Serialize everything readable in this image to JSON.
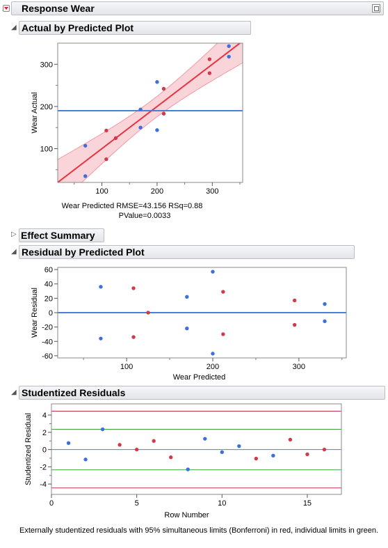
{
  "report": {
    "title": "Response Wear"
  },
  "sections": {
    "actual_by_predicted": "Actual by Predicted Plot",
    "effect_summary": "Effect Summary",
    "residual_by_predicted": "Residual by Predicted Plot",
    "studentized": "Studentized Residuals"
  },
  "colors": {
    "red_point": "#d23a4a",
    "blue_point": "#3d6fe0",
    "fit_line": "#e8323f",
    "mean_line": "#4a7fd8",
    "band": "#f7c6cc",
    "limit_red": "#c8304a",
    "limit_green": "#3aa23a"
  },
  "chart_data": [
    {
      "type": "scatter",
      "name": "actual_by_predicted",
      "xlabel": "Wear Predicted",
      "ylabel": "Wear Actual",
      "xlim": [
        20,
        355
      ],
      "ylim": [
        20,
        350
      ],
      "xticks": [
        "100",
        "200",
        "300"
      ],
      "yticks": [
        "100",
        "200",
        "300"
      ],
      "stats_line1": "RMSE=43.156 RSq=0.88",
      "stats_line2": "PValue=0.0033",
      "mean_y": 190,
      "points": [
        {
          "x": 70,
          "y": 107,
          "group": "blue"
        },
        {
          "x": 70,
          "y": 35,
          "group": "blue"
        },
        {
          "x": 108,
          "y": 143,
          "group": "red"
        },
        {
          "x": 108,
          "y": 75,
          "group": "red"
        },
        {
          "x": 125,
          "y": 125,
          "group": "red"
        },
        {
          "x": 170,
          "y": 193,
          "group": "blue"
        },
        {
          "x": 170,
          "y": 150,
          "group": "blue"
        },
        {
          "x": 200,
          "y": 258,
          "group": "blue"
        },
        {
          "x": 200,
          "y": 144,
          "group": "blue"
        },
        {
          "x": 212,
          "y": 242,
          "group": "red"
        },
        {
          "x": 212,
          "y": 183,
          "group": "red"
        },
        {
          "x": 295,
          "y": 312,
          "group": "red"
        },
        {
          "x": 295,
          "y": 279,
          "group": "red"
        },
        {
          "x": 330,
          "y": 343,
          "group": "blue"
        },
        {
          "x": 330,
          "y": 318,
          "group": "blue"
        }
      ]
    },
    {
      "type": "scatter",
      "name": "residual_by_predicted",
      "xlabel": "Wear Predicted",
      "ylabel": "Wear Residual",
      "xlim": [
        20,
        355
      ],
      "ylim": [
        -63,
        63
      ],
      "xticks": [
        "100",
        "200",
        "300"
      ],
      "yticks": [
        "60",
        "40",
        "20",
        "0",
        "-20",
        "-40",
        "-60"
      ],
      "zero_line": 0,
      "points": [
        {
          "x": 70,
          "y": 36,
          "group": "blue"
        },
        {
          "x": 70,
          "y": -36,
          "group": "blue"
        },
        {
          "x": 108,
          "y": 34,
          "group": "red"
        },
        {
          "x": 108,
          "y": -34,
          "group": "red"
        },
        {
          "x": 125,
          "y": 0,
          "group": "red"
        },
        {
          "x": 170,
          "y": 22,
          "group": "blue"
        },
        {
          "x": 170,
          "y": -22,
          "group": "blue"
        },
        {
          "x": 200,
          "y": 57,
          "group": "blue"
        },
        {
          "x": 200,
          "y": -57,
          "group": "blue"
        },
        {
          "x": 212,
          "y": 29,
          "group": "red"
        },
        {
          "x": 212,
          "y": -30,
          "group": "red"
        },
        {
          "x": 295,
          "y": 17,
          "group": "red"
        },
        {
          "x": 295,
          "y": -17,
          "group": "red"
        },
        {
          "x": 330,
          "y": 12,
          "group": "blue"
        },
        {
          "x": 330,
          "y": -12,
          "group": "blue"
        }
      ]
    },
    {
      "type": "scatter",
      "name": "studentized_residuals",
      "xlabel": "Row Number",
      "ylabel": "Studentized Residual",
      "xlim": [
        0,
        17
      ],
      "ylim": [
        -5.2,
        5.3
      ],
      "xticks": [
        "0",
        "5",
        "10",
        "15"
      ],
      "yticks": [
        "4",
        "2",
        "0",
        "-2",
        "-4"
      ],
      "zero_line": 0,
      "limits_red": [
        4.45,
        -4.45
      ],
      "limits_green": [
        2.35,
        -2.35
      ],
      "points": [
        {
          "x": 1,
          "y": 0.75,
          "group": "blue"
        },
        {
          "x": 2,
          "y": -1.15,
          "group": "blue"
        },
        {
          "x": 3,
          "y": 2.35,
          "group": "blue"
        },
        {
          "x": 4,
          "y": 0.55,
          "group": "red"
        },
        {
          "x": 5,
          "y": 0.0,
          "group": "red"
        },
        {
          "x": 6,
          "y": 1.0,
          "group": "red"
        },
        {
          "x": 7,
          "y": -0.9,
          "group": "red"
        },
        {
          "x": 8,
          "y": -2.3,
          "group": "blue"
        },
        {
          "x": 9,
          "y": 1.25,
          "group": "blue"
        },
        {
          "x": 10,
          "y": -0.3,
          "group": "blue"
        },
        {
          "x": 11,
          "y": 0.4,
          "group": "blue"
        },
        {
          "x": 12,
          "y": -1.05,
          "group": "red"
        },
        {
          "x": 13,
          "y": -0.7,
          "group": "blue"
        },
        {
          "x": 14,
          "y": 1.15,
          "group": "red"
        },
        {
          "x": 15,
          "y": -0.55,
          "group": "red"
        },
        {
          "x": 16,
          "y": 0.0,
          "group": "red"
        }
      ]
    }
  ],
  "caption": "Externally studentized residuals with 95% simultaneous limits (Bonferroni) in red, individual limits in green."
}
